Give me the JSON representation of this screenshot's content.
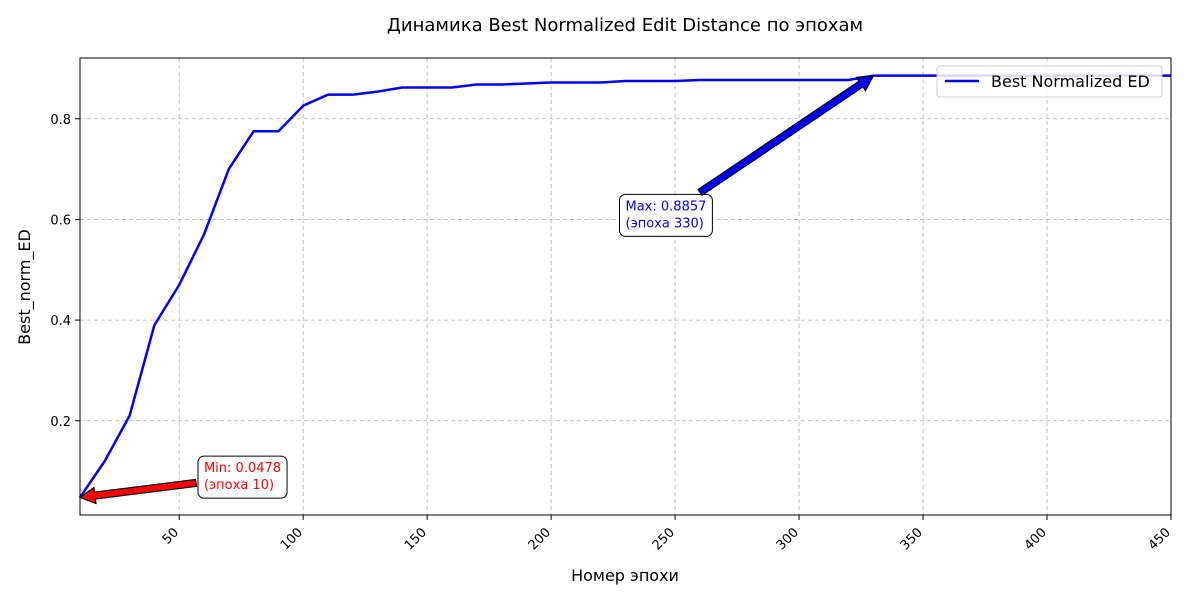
{
  "chart_data": {
    "type": "line",
    "title": "Динамика Best Normalized Edit Distance по эпохам",
    "xlabel": "Номер эпохи",
    "ylabel": "Best_norm_ED",
    "xlim": [
      10,
      450
    ],
    "ylim": [
      0.0128,
      0.9207
    ],
    "x_ticks": [
      50,
      100,
      150,
      200,
      250,
      300,
      350,
      400,
      450
    ],
    "y_ticks": [
      0.2,
      0.4,
      0.6,
      0.8
    ],
    "x_tick_rotation": 45,
    "grid": true,
    "legend_position": "top-right",
    "series": [
      {
        "name": "Best Normalized ED",
        "color": "#0000ff",
        "x": [
          10,
          20,
          30,
          40,
          50,
          60,
          70,
          80,
          90,
          100,
          110,
          120,
          130,
          140,
          150,
          160,
          170,
          180,
          190,
          200,
          210,
          220,
          230,
          240,
          250,
          260,
          270,
          280,
          290,
          300,
          310,
          320,
          330,
          340,
          350,
          360,
          370,
          380,
          390,
          400,
          410,
          420,
          430,
          440,
          450
        ],
        "y": [
          0.0478,
          0.12,
          0.21,
          0.39,
          0.47,
          0.57,
          0.7,
          0.775,
          0.775,
          0.826,
          0.848,
          0.848,
          0.854,
          0.862,
          0.862,
          0.862,
          0.868,
          0.868,
          0.87,
          0.872,
          0.872,
          0.872,
          0.875,
          0.875,
          0.875,
          0.877,
          0.877,
          0.877,
          0.877,
          0.877,
          0.877,
          0.877,
          0.8857,
          0.8857,
          0.8857,
          0.8857,
          0.8857,
          0.8857,
          0.8857,
          0.8857,
          0.8857,
          0.8857,
          0.8857,
          0.8857,
          0.8857
        ]
      }
    ],
    "annotations": [
      {
        "kind": "min",
        "line1": "Min: 0.0478",
        "line2": "(эпоха 10)",
        "point_x": 10,
        "point_y": 0.0478,
        "text_x": 60,
        "text_y": 0.09,
        "color": "#ff0000",
        "arrow_color": "#ff0000"
      },
      {
        "kind": "max",
        "line1": "Max: 0.8857",
        "line2": "(эпоха 330)",
        "point_x": 330,
        "point_y": 0.8857,
        "text_x": 230,
        "text_y": 0.61,
        "color": "#0000ff",
        "arrow_color": "#0000ff"
      }
    ]
  }
}
